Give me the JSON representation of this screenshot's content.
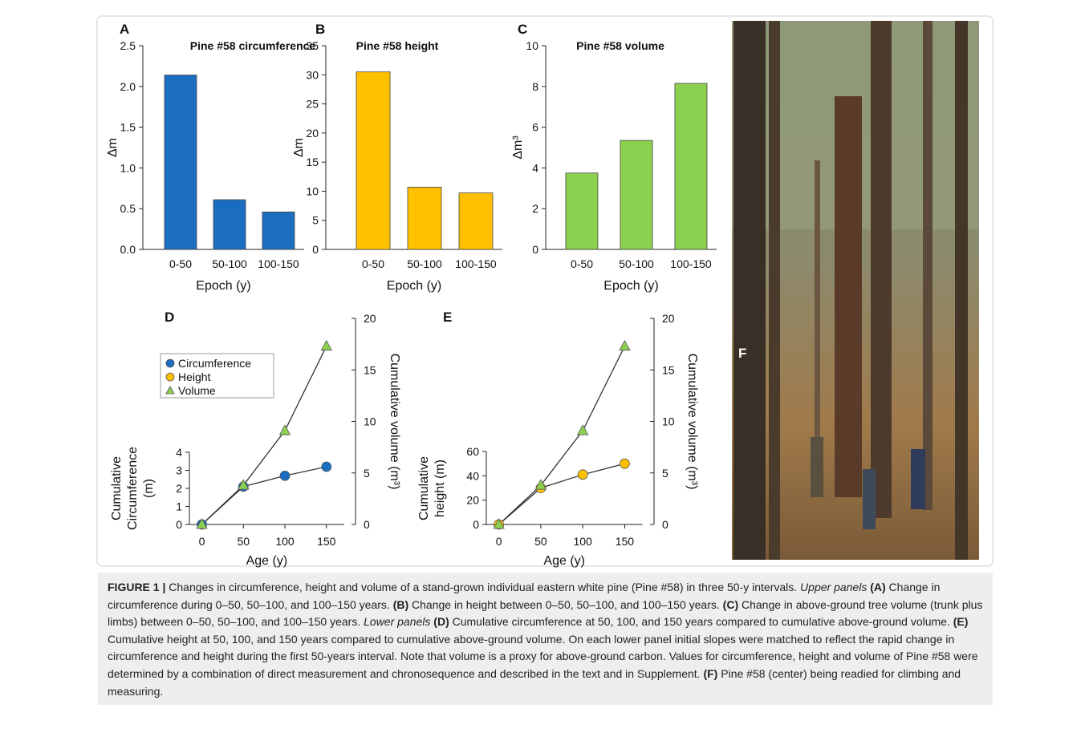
{
  "chart_data": [
    {
      "type": "bar",
      "panel": "A",
      "title": "Pine #58 circumference",
      "ylabel": "Δm",
      "xlabel": "Epoch (y)",
      "categories": [
        "0-50",
        "50-100",
        "100-150"
      ],
      "values": [
        2.14,
        0.61,
        0.46
      ],
      "color": "#1a6dc0",
      "ylim": [
        0,
        2.5
      ],
      "yticks": [
        {
          "value": 0,
          "label": "0.0"
        },
        0.5,
        {
          "value": 1,
          "label": "1.0"
        },
        1.5,
        {
          "value": 2,
          "label": "2.0"
        },
        2.5
      ]
    },
    {
      "type": "bar",
      "panel": "B",
      "title": "Pine #58 height",
      "ylabel": "Δm",
      "xlabel": "Epoch (y)",
      "categories": [
        "0-50",
        "50-100",
        "100-150"
      ],
      "values": [
        30.5,
        10.7,
        9.7
      ],
      "color": "#ffc000",
      "ylim": [
        0,
        35
      ],
      "yticks": [
        0,
        5,
        10,
        15,
        20,
        25,
        30,
        35
      ]
    },
    {
      "type": "bar",
      "panel": "C",
      "title": "Pine #58 volume",
      "ylabel": "Δm³",
      "xlabel": "Epoch (y)",
      "categories": [
        "0-50",
        "50-100",
        "100-150"
      ],
      "values": [
        3.75,
        5.35,
        8.15
      ],
      "color": "#8cd050",
      "ylim": [
        0,
        10
      ],
      "yticks": [
        0,
        2,
        4,
        6,
        8,
        10
      ]
    },
    {
      "type": "line",
      "panel": "D",
      "ylabel": [
        "Cumulative",
        "Circumference",
        "(m)"
      ],
      "y2label": "Cumulative volume (m³)",
      "xlabel": "Age (y)",
      "x": [
        0,
        50,
        100,
        150
      ],
      "xlim": [
        -15,
        185
      ],
      "xticks": [
        0,
        50,
        100,
        150
      ],
      "ylim": [
        0,
        4
      ],
      "yticks": [
        0,
        1,
        2,
        3,
        4
      ],
      "y2lim": [
        0,
        20
      ],
      "y2ticks": [
        0,
        5,
        10,
        15,
        20
      ],
      "line_color": "#333333",
      "series": [
        {
          "name": "Circumference",
          "color": "#1a6dc0",
          "marker": "circle",
          "values": [
            0,
            2.1,
            2.7,
            3.2
          ]
        },
        {
          "name": "Volume",
          "color": "#8cd050",
          "marker": "triangle",
          "axis": "y2",
          "values": [
            0,
            3.8,
            9.1,
            17.3
          ]
        }
      ],
      "legend": [
        {
          "name": "Circumference",
          "color": "#1a6dc0",
          "marker": "circle"
        },
        {
          "name": "Height",
          "color": "#ffc000",
          "marker": "circle"
        },
        {
          "name": "Volume",
          "color": "#8cd050",
          "marker": "triangle"
        }
      ]
    },
    {
      "type": "line",
      "panel": "E",
      "ylabel": [
        "Cumulative",
        "height (m)"
      ],
      "y2label": "Cumulative volume (m³)",
      "xlabel": "Age (y)",
      "x": [
        0,
        50,
        100,
        150
      ],
      "xlim": [
        -15,
        185
      ],
      "xticks": [
        0,
        50,
        100,
        150
      ],
      "ylim": [
        0,
        60
      ],
      "yticks": [
        0,
        20,
        40,
        60
      ],
      "y2lim": [
        0,
        20
      ],
      "y2ticks": [
        0,
        5,
        10,
        15,
        20
      ],
      "line_color": "#333333",
      "series": [
        {
          "name": "Height",
          "color": "#ffc000",
          "marker": "circle",
          "values": [
            0,
            30,
            41,
            50
          ]
        },
        {
          "name": "Volume",
          "color": "#8cd050",
          "marker": "triangle",
          "axis": "y2",
          "values": [
            0,
            3.8,
            9.1,
            17.3
          ]
        }
      ]
    }
  ],
  "photo": {
    "panel": "F"
  },
  "caption": [
    {
      "text": "FIGURE 1 |",
      "style": "bold"
    },
    {
      "text": " Changes in circumference, height and volume of a stand-grown individual eastern white pine (Pine #58) in three 50-y intervals. ",
      "style": "normal"
    },
    {
      "text": "Upper panels",
      "style": "italic"
    },
    {
      "text": " (A)",
      "style": "bold"
    },
    {
      "text": " Change in circumference during 0–50, 50–100, and 100–150 years. ",
      "style": "normal"
    },
    {
      "text": "(B)",
      "style": "bold"
    },
    {
      "text": " Change in height between 0–50, 50–100, and 100–150 years. ",
      "style": "normal"
    },
    {
      "text": "(C)",
      "style": "bold"
    },
    {
      "text": " Change in above-ground tree volume (trunk plus limbs) between 0–50, 50–100, and 100–150 years. ",
      "style": "normal"
    },
    {
      "text": "Lower panels",
      "style": "italic"
    },
    {
      "text": " (D)",
      "style": "bold"
    },
    {
      "text": " Cumulative circumference at 50, 100, and 150 years compared to cumulative above-ground volume. ",
      "style": "normal"
    },
    {
      "text": "(E)",
      "style": "bold"
    },
    {
      "text": " Cumulative height at 50, 100, and 150 years compared to cumulative above-ground volume. On each lower panel initial slopes were matched to reflect the rapid change in circumference and height during the first 50-years interval. Note that volume is a proxy for above-ground carbon. Values for circumference, height and volume of Pine #58 were determined by a combination of direct measurement and chronosequence and described in the text and in Supplement. ",
      "style": "normal"
    },
    {
      "text": "(F)",
      "style": "bold"
    },
    {
      "text": " Pine #58 (center) being readied for climbing and measuring.",
      "style": "normal"
    }
  ]
}
